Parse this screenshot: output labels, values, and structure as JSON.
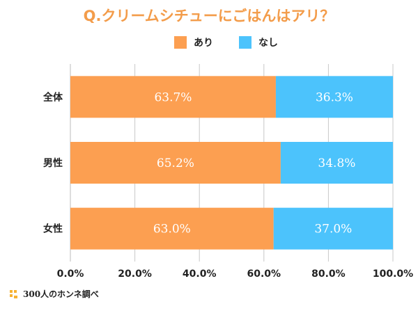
{
  "chart_data": {
    "type": "bar",
    "orientation": "horizontal",
    "stacked": true,
    "title": "Q.クリームシチューにごはんはアリ？",
    "categories": [
      "全体",
      "男性",
      "女性"
    ],
    "series": [
      {
        "name": "あり",
        "values": [
          63.7,
          65.2,
          63.0
        ],
        "labels": [
          "63.7%",
          "65.2%",
          "63.0%"
        ]
      },
      {
        "name": "なし",
        "values": [
          36.3,
          34.8,
          37.0
        ],
        "labels": [
          "36.3%",
          "34.8%",
          "37.0%"
        ]
      }
    ],
    "xlim": [
      0,
      100
    ],
    "xticks": [
      "0.0%",
      "20.0%",
      "40.0%",
      "60.0%",
      "80.0%",
      "100.0%"
    ],
    "grid": true,
    "legend_position": "top-center"
  },
  "colors": {
    "title": "#f39c4a",
    "ari": "#fc9f51",
    "nashi": "#4cc3fc",
    "grid": "#c8c8c8"
  },
  "footer": {
    "text": "300人のホンネ調べ",
    "icon": "logo-icon"
  }
}
